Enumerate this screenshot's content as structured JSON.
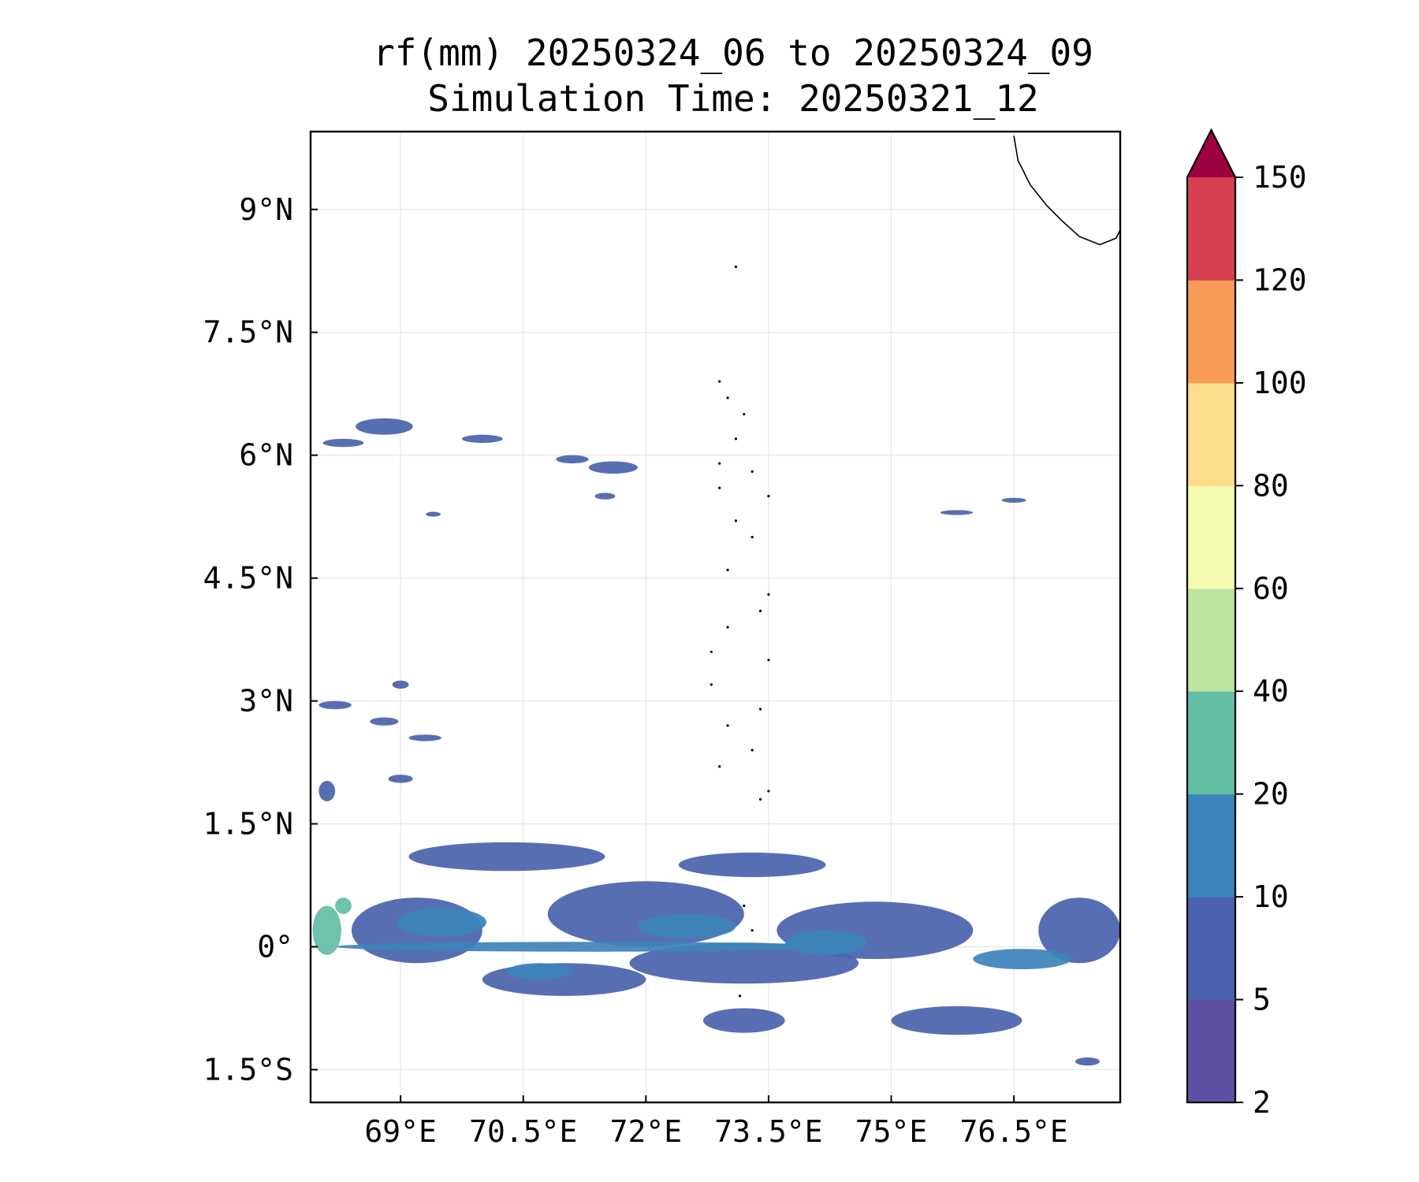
{
  "chart_data": {
    "type": "heatmap",
    "title": "rf(mm) 20250324_06 to 20250324_09",
    "subtitle": "Simulation Time: 20250321_12",
    "xlim": [
      67.9,
      77.8
    ],
    "ylim": [
      -1.9,
      9.95
    ],
    "x_ticks": [
      {
        "value": 69.0,
        "label": "69°E"
      },
      {
        "value": 70.5,
        "label": "70.5°E"
      },
      {
        "value": 72.0,
        "label": "72°E"
      },
      {
        "value": 73.5,
        "label": "73.5°E"
      },
      {
        "value": 75.0,
        "label": "75°E"
      },
      {
        "value": 76.5,
        "label": "76.5°E"
      }
    ],
    "y_ticks": [
      {
        "value": 9.0,
        "label": "9°N"
      },
      {
        "value": 7.5,
        "label": "7.5°N"
      },
      {
        "value": 6.0,
        "label": "6°N"
      },
      {
        "value": 4.5,
        "label": "4.5°N"
      },
      {
        "value": 3.0,
        "label": "3°N"
      },
      {
        "value": 1.5,
        "label": "1.5°N"
      },
      {
        "value": 0.0,
        "label": "0°"
      },
      {
        "value": -1.5,
        "label": "1.5°S"
      }
    ],
    "grid": true,
    "colorbar": {
      "levels": [
        2,
        5,
        10,
        20,
        40,
        60,
        80,
        100,
        120,
        150
      ],
      "tick_labels": [
        "2",
        "5",
        "10",
        "20",
        "40",
        "60",
        "80",
        "100",
        "120",
        "150"
      ],
      "colors": [
        "#5e4fa2",
        "#4a62ad",
        "#3c83bb",
        "#63bda5",
        "#bde3a0",
        "#f3fab0",
        "#fcdd8c",
        "#f99b58",
        "#d63f4f",
        "#9e0142"
      ],
      "extend": "max"
    },
    "rain_features": [
      {
        "lon": 69.2,
        "lat": 0.2,
        "dlon": 1.6,
        "dlat": 0.8,
        "level": 5
      },
      {
        "lon": 72.0,
        "lat": 0.4,
        "dlon": 2.4,
        "dlat": 0.8,
        "level": 5
      },
      {
        "lon": 74.8,
        "lat": 0.2,
        "dlon": 2.4,
        "dlat": 0.7,
        "level": 5
      },
      {
        "lon": 71.0,
        "lat": -0.4,
        "dlon": 2.0,
        "dlat": 0.4,
        "level": 5
      },
      {
        "lon": 73.2,
        "lat": -0.2,
        "dlon": 2.8,
        "dlat": 0.5,
        "level": 5
      },
      {
        "lon": 70.3,
        "lat": 1.1,
        "dlon": 2.4,
        "dlat": 0.35,
        "level": 5
      },
      {
        "lon": 73.3,
        "lat": 1.0,
        "dlon": 1.8,
        "dlat": 0.3,
        "level": 5
      },
      {
        "lon": 75.8,
        "lat": -0.9,
        "dlon": 1.6,
        "dlat": 0.35,
        "level": 5
      },
      {
        "lon": 73.2,
        "lat": -0.9,
        "dlon": 1.0,
        "dlat": 0.3,
        "level": 5
      },
      {
        "lon": 77.3,
        "lat": 0.2,
        "dlon": 1.0,
        "dlat": 0.8,
        "level": 5
      },
      {
        "lon": 71.3,
        "lat": 0.0,
        "dlon": 6.2,
        "dlat": 0.12,
        "level": 10
      },
      {
        "lon": 69.5,
        "lat": 0.3,
        "dlon": 1.1,
        "dlat": 0.35,
        "level": 10
      },
      {
        "lon": 72.5,
        "lat": 0.25,
        "dlon": 1.2,
        "dlat": 0.3,
        "level": 10
      },
      {
        "lon": 74.2,
        "lat": 0.05,
        "dlon": 1.0,
        "dlat": 0.3,
        "level": 10
      },
      {
        "lon": 70.7,
        "lat": -0.3,
        "dlon": 0.8,
        "dlat": 0.2,
        "level": 10
      },
      {
        "lon": 76.6,
        "lat": -0.15,
        "dlon": 1.2,
        "dlat": 0.25,
        "level": 10
      },
      {
        "lon": 68.1,
        "lat": 0.2,
        "dlon": 0.35,
        "dlat": 0.6,
        "level": 20
      },
      {
        "lon": 68.3,
        "lat": 0.5,
        "dlon": 0.2,
        "dlat": 0.2,
        "level": 20
      },
      {
        "lon": 68.8,
        "lat": 6.35,
        "dlon": 0.7,
        "dlat": 0.2,
        "level": 5
      },
      {
        "lon": 68.3,
        "lat": 6.15,
        "dlon": 0.5,
        "dlat": 0.1,
        "level": 5
      },
      {
        "lon": 70.0,
        "lat": 6.2,
        "dlon": 0.5,
        "dlat": 0.1,
        "level": 5
      },
      {
        "lon": 71.6,
        "lat": 5.85,
        "dlon": 0.6,
        "dlat": 0.15,
        "level": 5
      },
      {
        "lon": 71.1,
        "lat": 5.95,
        "dlon": 0.4,
        "dlat": 0.1,
        "level": 5
      },
      {
        "lon": 71.5,
        "lat": 5.5,
        "dlon": 0.25,
        "dlat": 0.08,
        "level": 5
      },
      {
        "lon": 69.4,
        "lat": 5.28,
        "dlon": 0.18,
        "dlat": 0.06,
        "level": 5
      },
      {
        "lon": 68.2,
        "lat": 2.95,
        "dlon": 0.4,
        "dlat": 0.1,
        "level": 5
      },
      {
        "lon": 68.8,
        "lat": 2.75,
        "dlon": 0.35,
        "dlat": 0.1,
        "level": 5
      },
      {
        "lon": 69.3,
        "lat": 2.55,
        "dlon": 0.4,
        "dlat": 0.08,
        "level": 5
      },
      {
        "lon": 69.0,
        "lat": 3.2,
        "dlon": 0.2,
        "dlat": 0.1,
        "level": 5
      },
      {
        "lon": 68.1,
        "lat": 1.9,
        "dlon": 0.2,
        "dlat": 0.25,
        "level": 5
      },
      {
        "lon": 69.0,
        "lat": 2.05,
        "dlon": 0.3,
        "dlat": 0.1,
        "level": 5
      },
      {
        "lon": 75.8,
        "lat": 5.3,
        "dlon": 0.4,
        "dlat": 0.06,
        "level": 5
      },
      {
        "lon": 76.5,
        "lat": 5.45,
        "dlon": 0.3,
        "dlat": 0.06,
        "level": 5
      },
      {
        "lon": 77.4,
        "lat": -1.4,
        "dlon": 0.3,
        "dlat": 0.1,
        "level": 5
      }
    ],
    "coastline": [
      [
        76.5,
        9.9
      ],
      [
        76.55,
        9.6
      ],
      [
        76.7,
        9.3
      ],
      [
        76.9,
        9.05
      ],
      [
        77.1,
        8.85
      ],
      [
        77.3,
        8.67
      ],
      [
        77.55,
        8.57
      ],
      [
        77.75,
        8.65
      ],
      [
        77.8,
        8.75
      ]
    ],
    "islands": [
      [
        73.1,
        8.3
      ],
      [
        72.9,
        6.9
      ],
      [
        73.0,
        6.7
      ],
      [
        73.2,
        6.5
      ],
      [
        73.1,
        6.2
      ],
      [
        72.9,
        5.9
      ],
      [
        73.3,
        5.8
      ],
      [
        72.9,
        5.6
      ],
      [
        73.5,
        5.5
      ],
      [
        73.1,
        5.2
      ],
      [
        73.3,
        5.0
      ],
      [
        73.0,
        4.6
      ],
      [
        73.5,
        4.3
      ],
      [
        73.4,
        4.1
      ],
      [
        73.0,
        3.9
      ],
      [
        72.8,
        3.6
      ],
      [
        73.5,
        3.5
      ],
      [
        72.8,
        3.2
      ],
      [
        73.4,
        2.9
      ],
      [
        73.0,
        2.7
      ],
      [
        73.3,
        2.4
      ],
      [
        72.9,
        2.2
      ],
      [
        73.5,
        1.9
      ],
      [
        73.4,
        1.8
      ],
      [
        73.2,
        0.5
      ],
      [
        73.3,
        0.2
      ],
      [
        73.15,
        -0.6
      ]
    ]
  }
}
